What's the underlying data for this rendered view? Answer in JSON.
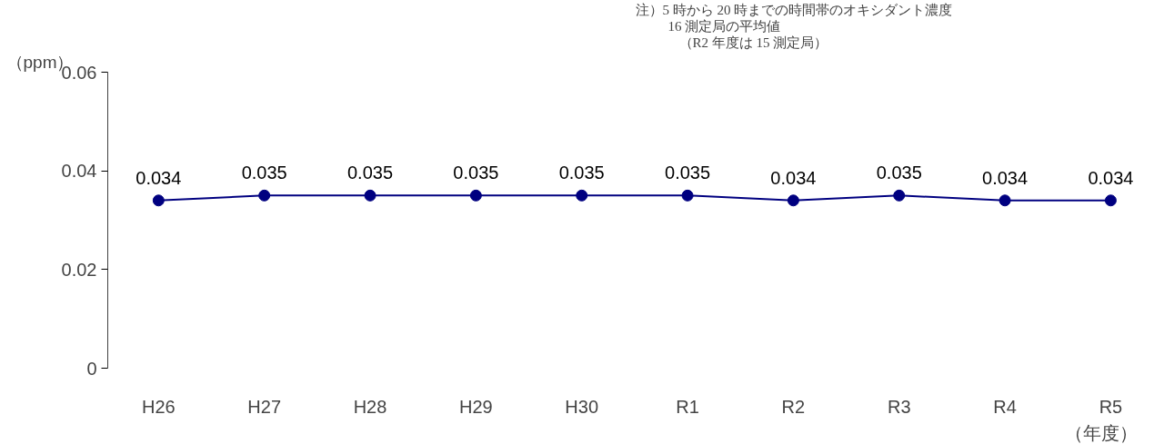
{
  "chart_data": {
    "type": "line",
    "ylabel": "（ppm）",
    "xlabel": "（年度）",
    "categories": [
      "H26",
      "H27",
      "H28",
      "H29",
      "H30",
      "R1",
      "R2",
      "R3",
      "R4",
      "R5"
    ],
    "values": [
      0.034,
      0.035,
      0.035,
      0.035,
      0.035,
      0.035,
      0.034,
      0.035,
      0.034,
      0.034
    ],
    "color": "#000080",
    "marker": "circle",
    "data_labels": true,
    "grid": false,
    "ylim": [
      0,
      0.06
    ],
    "yticks": [
      0,
      0.02,
      0.04,
      0.06
    ],
    "annotations": [
      "注）5 時から 20 時までの時間帯のオキシダント濃度",
      "16 測定局の平均値",
      "（R2 年度は 15 測定局）"
    ]
  }
}
